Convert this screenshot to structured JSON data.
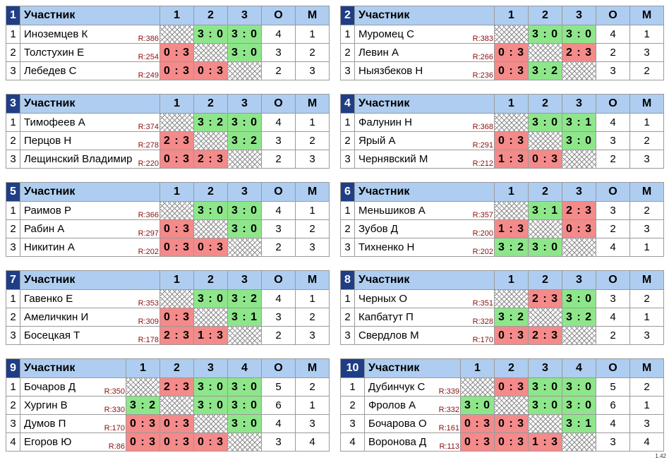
{
  "header_label": "Участник",
  "col_o": "О",
  "col_m": "М",
  "version": "1.42",
  "groups": [
    {
      "num": "1",
      "cols": [
        "1",
        "2",
        "3"
      ],
      "players": [
        {
          "idx": "1",
          "name": "Иноземцев К",
          "rating": "R:386",
          "cells": [
            {
              "t": "",
              "k": "x"
            },
            {
              "t": "3 : 0",
              "k": "w"
            },
            {
              "t": "3 : 0",
              "k": "w"
            }
          ],
          "o": "4",
          "m": "1"
        },
        {
          "idx": "2",
          "name": "Толстухин Е",
          "rating": "R:254",
          "cells": [
            {
              "t": "0 : 3",
              "k": "l"
            },
            {
              "t": "",
              "k": "x"
            },
            {
              "t": "3 : 0",
              "k": "w"
            }
          ],
          "o": "3",
          "m": "2"
        },
        {
          "idx": "3",
          "name": "Лебедев С",
          "rating": "R:249",
          "cells": [
            {
              "t": "0 : 3",
              "k": "l"
            },
            {
              "t": "0 : 3",
              "k": "l"
            },
            {
              "t": "",
              "k": "x"
            }
          ],
          "o": "2",
          "m": "3"
        }
      ]
    },
    {
      "num": "2",
      "cols": [
        "1",
        "2",
        "3"
      ],
      "players": [
        {
          "idx": "1",
          "name": "Муромец С",
          "rating": "R:383",
          "cells": [
            {
              "t": "",
              "k": "x"
            },
            {
              "t": "3 : 0",
              "k": "w"
            },
            {
              "t": "3 : 0",
              "k": "w"
            }
          ],
          "o": "4",
          "m": "1"
        },
        {
          "idx": "2",
          "name": "Левин А",
          "rating": "R:266",
          "cells": [
            {
              "t": "0 : 3",
              "k": "l"
            },
            {
              "t": "",
              "k": "x"
            },
            {
              "t": "2 : 3",
              "k": "l"
            }
          ],
          "o": "2",
          "m": "3"
        },
        {
          "idx": "3",
          "name": "Ныязбеков Н",
          "rating": "R:236",
          "cells": [
            {
              "t": "0 : 3",
              "k": "l"
            },
            {
              "t": "3 : 2",
              "k": "w"
            },
            {
              "t": "",
              "k": "x"
            }
          ],
          "o": "3",
          "m": "2"
        }
      ]
    },
    {
      "num": "3",
      "cols": [
        "1",
        "2",
        "3"
      ],
      "players": [
        {
          "idx": "1",
          "name": "Тимофеев А",
          "rating": "R:374",
          "cells": [
            {
              "t": "",
              "k": "x"
            },
            {
              "t": "3 : 2",
              "k": "w"
            },
            {
              "t": "3 : 0",
              "k": "w"
            }
          ],
          "o": "4",
          "m": "1"
        },
        {
          "idx": "2",
          "name": "Перцов Н",
          "rating": "R:278",
          "cells": [
            {
              "t": "2 : 3",
              "k": "l"
            },
            {
              "t": "",
              "k": "x"
            },
            {
              "t": "3 : 2",
              "k": "w"
            }
          ],
          "o": "3",
          "m": "2"
        },
        {
          "idx": "3",
          "name": "Лещинский Владимир",
          "rating": "R:220",
          "cells": [
            {
              "t": "0 : 3",
              "k": "l"
            },
            {
              "t": "2 : 3",
              "k": "l"
            },
            {
              "t": "",
              "k": "x"
            }
          ],
          "o": "2",
          "m": "3"
        }
      ]
    },
    {
      "num": "4",
      "cols": [
        "1",
        "2",
        "3"
      ],
      "players": [
        {
          "idx": "1",
          "name": "Фалунин Н",
          "rating": "R:368",
          "cells": [
            {
              "t": "",
              "k": "x"
            },
            {
              "t": "3 : 0",
              "k": "w"
            },
            {
              "t": "3 : 1",
              "k": "w"
            }
          ],
          "o": "4",
          "m": "1"
        },
        {
          "idx": "2",
          "name": "Ярый А",
          "rating": "R:291",
          "cells": [
            {
              "t": "0 : 3",
              "k": "l"
            },
            {
              "t": "",
              "k": "x"
            },
            {
              "t": "3 : 0",
              "k": "w"
            }
          ],
          "o": "3",
          "m": "2"
        },
        {
          "idx": "3",
          "name": "Чернявский М",
          "rating": "R:212",
          "cells": [
            {
              "t": "1 : 3",
              "k": "l"
            },
            {
              "t": "0 : 3",
              "k": "l"
            },
            {
              "t": "",
              "k": "x"
            }
          ],
          "o": "2",
          "m": "3"
        }
      ]
    },
    {
      "num": "5",
      "cols": [
        "1",
        "2",
        "3"
      ],
      "players": [
        {
          "idx": "1",
          "name": "Раимов Р",
          "rating": "R:366",
          "cells": [
            {
              "t": "",
              "k": "x"
            },
            {
              "t": "3 : 0",
              "k": "w"
            },
            {
              "t": "3 : 0",
              "k": "w"
            }
          ],
          "o": "4",
          "m": "1"
        },
        {
          "idx": "2",
          "name": "Рабин А",
          "rating": "R:297",
          "cells": [
            {
              "t": "0 : 3",
              "k": "l"
            },
            {
              "t": "",
              "k": "x"
            },
            {
              "t": "3 : 0",
              "k": "w"
            }
          ],
          "o": "3",
          "m": "2"
        },
        {
          "idx": "3",
          "name": "Никитин А",
          "rating": "R:202",
          "cells": [
            {
              "t": "0 : 3",
              "k": "l"
            },
            {
              "t": "0 : 3",
              "k": "l"
            },
            {
              "t": "",
              "k": "x"
            }
          ],
          "o": "2",
          "m": "3"
        }
      ]
    },
    {
      "num": "6",
      "cols": [
        "1",
        "2",
        "3"
      ],
      "players": [
        {
          "idx": "1",
          "name": "Меньшиков А",
          "rating": "R:357",
          "cells": [
            {
              "t": "",
              "k": "x"
            },
            {
              "t": "3 : 1",
              "k": "w"
            },
            {
              "t": "2 : 3",
              "k": "l"
            }
          ],
          "o": "3",
          "m": "2"
        },
        {
          "idx": "2",
          "name": "Зубов Д",
          "rating": "R:200",
          "cells": [
            {
              "t": "1 : 3",
              "k": "l"
            },
            {
              "t": "",
              "k": "x"
            },
            {
              "t": "0 : 3",
              "k": "l"
            }
          ],
          "o": "2",
          "m": "3"
        },
        {
          "idx": "3",
          "name": "Тихненко Н",
          "rating": "R:202",
          "cells": [
            {
              "t": "3 : 2",
              "k": "w"
            },
            {
              "t": "3 : 0",
              "k": "w"
            },
            {
              "t": "",
              "k": "x"
            }
          ],
          "o": "4",
          "m": "1"
        }
      ]
    },
    {
      "num": "7",
      "cols": [
        "1",
        "2",
        "3"
      ],
      "players": [
        {
          "idx": "1",
          "name": "Гавенко Е",
          "rating": "R:353",
          "cells": [
            {
              "t": "",
              "k": "x"
            },
            {
              "t": "3 : 0",
              "k": "w"
            },
            {
              "t": "3 : 2",
              "k": "w"
            }
          ],
          "o": "4",
          "m": "1"
        },
        {
          "idx": "2",
          "name": "Амеличкин И",
          "rating": "R:309",
          "cells": [
            {
              "t": "0 : 3",
              "k": "l"
            },
            {
              "t": "",
              "k": "x"
            },
            {
              "t": "3 : 1",
              "k": "w"
            }
          ],
          "o": "3",
          "m": "2"
        },
        {
          "idx": "3",
          "name": "Босецкая Т",
          "rating": "R:178",
          "cells": [
            {
              "t": "2 : 3",
              "k": "l"
            },
            {
              "t": "1 : 3",
              "k": "l"
            },
            {
              "t": "",
              "k": "x"
            }
          ],
          "o": "2",
          "m": "3"
        }
      ]
    },
    {
      "num": "8",
      "cols": [
        "1",
        "2",
        "3"
      ],
      "players": [
        {
          "idx": "1",
          "name": "Черных О",
          "rating": "R:351",
          "cells": [
            {
              "t": "",
              "k": "x"
            },
            {
              "t": "2 : 3",
              "k": "l"
            },
            {
              "t": "3 : 0",
              "k": "w"
            }
          ],
          "o": "3",
          "m": "2"
        },
        {
          "idx": "2",
          "name": "Капбатут П",
          "rating": "R:328",
          "cells": [
            {
              "t": "3 : 2",
              "k": "w"
            },
            {
              "t": "",
              "k": "x"
            },
            {
              "t": "3 : 2",
              "k": "w"
            }
          ],
          "o": "4",
          "m": "1"
        },
        {
          "idx": "3",
          "name": "Свердлов М",
          "rating": "R:170",
          "cells": [
            {
              "t": "0 : 3",
              "k": "l"
            },
            {
              "t": "2 : 3",
              "k": "l"
            },
            {
              "t": "",
              "k": "x"
            }
          ],
          "o": "2",
          "m": "3"
        }
      ]
    },
    {
      "num": "9",
      "cols": [
        "1",
        "2",
        "3",
        "4"
      ],
      "players": [
        {
          "idx": "1",
          "name": "Бочаров Д",
          "rating": "R:350",
          "cells": [
            {
              "t": "",
              "k": "x"
            },
            {
              "t": "2 : 3",
              "k": "l"
            },
            {
              "t": "3 : 0",
              "k": "w"
            },
            {
              "t": "3 : 0",
              "k": "w"
            }
          ],
          "o": "5",
          "m": "2"
        },
        {
          "idx": "2",
          "name": "Хургин В",
          "rating": "R:330",
          "cells": [
            {
              "t": "3 : 2",
              "k": "w"
            },
            {
              "t": "",
              "k": "x"
            },
            {
              "t": "3 : 0",
              "k": "w"
            },
            {
              "t": "3 : 0",
              "k": "w"
            }
          ],
          "o": "6",
          "m": "1"
        },
        {
          "idx": "3",
          "name": "Думов П",
          "rating": "R:170",
          "cells": [
            {
              "t": "0 : 3",
              "k": "l"
            },
            {
              "t": "0 : 3",
              "k": "l"
            },
            {
              "t": "",
              "k": "x"
            },
            {
              "t": "3 : 0",
              "k": "w"
            }
          ],
          "o": "4",
          "m": "3"
        },
        {
          "idx": "4",
          "name": "Егоров Ю",
          "rating": "R:86",
          "cells": [
            {
              "t": "0 : 3",
              "k": "l"
            },
            {
              "t": "0 : 3",
              "k": "l"
            },
            {
              "t": "0 : 3",
              "k": "l"
            },
            {
              "t": "",
              "k": "x"
            }
          ],
          "o": "3",
          "m": "4"
        }
      ]
    },
    {
      "num": "10",
      "cols": [
        "1",
        "2",
        "3",
        "4"
      ],
      "players": [
        {
          "idx": "1",
          "name": "Дубинчук С",
          "rating": "R:339",
          "cells": [
            {
              "t": "",
              "k": "x"
            },
            {
              "t": "0 : 3",
              "k": "l"
            },
            {
              "t": "3 : 0",
              "k": "w"
            },
            {
              "t": "3 : 0",
              "k": "w"
            }
          ],
          "o": "5",
          "m": "2"
        },
        {
          "idx": "2",
          "name": "Фролов А",
          "rating": "R:332",
          "cells": [
            {
              "t": "3 : 0",
              "k": "w"
            },
            {
              "t": "",
              "k": "x"
            },
            {
              "t": "3 : 0",
              "k": "w"
            },
            {
              "t": "3 : 0",
              "k": "w"
            }
          ],
          "o": "6",
          "m": "1"
        },
        {
          "idx": "3",
          "name": "Бочарова О",
          "rating": "R:161",
          "cells": [
            {
              "t": "0 : 3",
              "k": "l"
            },
            {
              "t": "0 : 3",
              "k": "l"
            },
            {
              "t": "",
              "k": "x"
            },
            {
              "t": "3 : 1",
              "k": "w"
            }
          ],
          "o": "4",
          "m": "3"
        },
        {
          "idx": "4",
          "name": "Воронова Д",
          "rating": "R:113",
          "cells": [
            {
              "t": "0 : 3",
              "k": "l"
            },
            {
              "t": "0 : 3",
              "k": "l"
            },
            {
              "t": "1 : 3",
              "k": "l"
            },
            {
              "t": "",
              "k": "x"
            }
          ],
          "o": "3",
          "m": "4"
        }
      ]
    }
  ]
}
